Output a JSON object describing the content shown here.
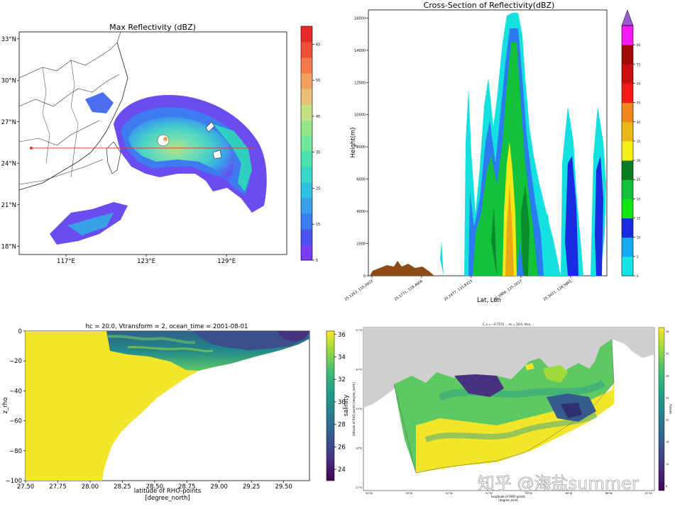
{
  "watermark": "知乎 @海盐summer",
  "chart_data": [
    {
      "type": "heatmap",
      "title": "Max Reflectivity (dBZ)",
      "x_ticks": [
        "117°E",
        "123°E",
        "129°E"
      ],
      "y_ticks": [
        "33°N",
        "30°N",
        "27°N",
        "24°N",
        "21°N",
        "18°N"
      ],
      "xlim": [
        113.5,
        133.5
      ],
      "ylim": [
        17.4,
        33.5
      ],
      "colorbar": {
        "ticks": [
          5,
          15,
          25,
          35,
          45,
          55,
          65
        ],
        "range": [
          5,
          70
        ]
      },
      "cross_section_line": {
        "from": [
          114.4,
          25.1
        ],
        "to": [
          131.1,
          25.1
        ]
      },
      "storm_center": [
        123.3,
        25.3
      ]
    },
    {
      "type": "area",
      "title": "Cross-Section of Reflectivity(dBZ)",
      "xlabel": "Lat, Lon",
      "ylabel": "Height(m)",
      "y_ticks": [
        0,
        2000,
        4000,
        6000,
        8000,
        10000,
        12000,
        14000,
        16000
      ],
      "ylim": [
        0,
        16500
      ],
      "x_tick_labels": [
        "25.1263, 115.0922",
        "25.1771, 118.4606",
        "25.2477, 121.8323",
        "25.2806, 125.2017",
        "25.3421, 128.5881"
      ],
      "colorbar": {
        "ticks": [
          0,
          5,
          10,
          15,
          20,
          25,
          30,
          35,
          40,
          45,
          50,
          55,
          60
        ],
        "range": [
          0,
          65
        ]
      }
    },
    {
      "type": "heatmap",
      "title": "hc = 20.0, Vtransform = 2, ocean_time = 2001-08-01",
      "xlabel": "latitude of RHO-points",
      "xlabel2": "[degree_north]",
      "ylabel": "z_rho",
      "x_ticks": [
        "27.50",
        "27.75",
        "28.00",
        "28.25",
        "28.50",
        "28.75",
        "29.00",
        "29.25",
        "29.50"
      ],
      "xlim": [
        27.5,
        29.7
      ],
      "y_ticks": [
        "0",
        "−20",
        "−40",
        "−60",
        "−80",
        "−100"
      ],
      "ylim": [
        -100,
        0
      ],
      "colorbar": {
        "label": "salinity",
        "ticks": [
          "24",
          "26",
          "28",
          "30",
          "32",
          "34",
          "36"
        ],
        "range": [
          23,
          36.3
        ]
      }
    },
    {
      "type": "heatmap",
      "title": "C_s = −0.7574 ... hc = 20.0, Vtra ...",
      "xlabel": "longitude of RHO-points",
      "xlabel2": "[degree_east]",
      "ylabel": "latitude of RHO-points [degree_north]",
      "x_ticks": [
        "94°W",
        "93°W",
        "92°W",
        "91°W",
        "90°W",
        "89°W",
        "88°W",
        "87°W"
      ],
      "y_ticks": [
        "31°N",
        "30°N",
        "29°N",
        "28°N",
        "27°N"
      ],
      "colorbar": {
        "label": "salinity",
        "ticks": [
          "36",
          "32",
          "28",
          "24",
          "20",
          "16",
          "12",
          "8"
        ]
      }
    }
  ]
}
